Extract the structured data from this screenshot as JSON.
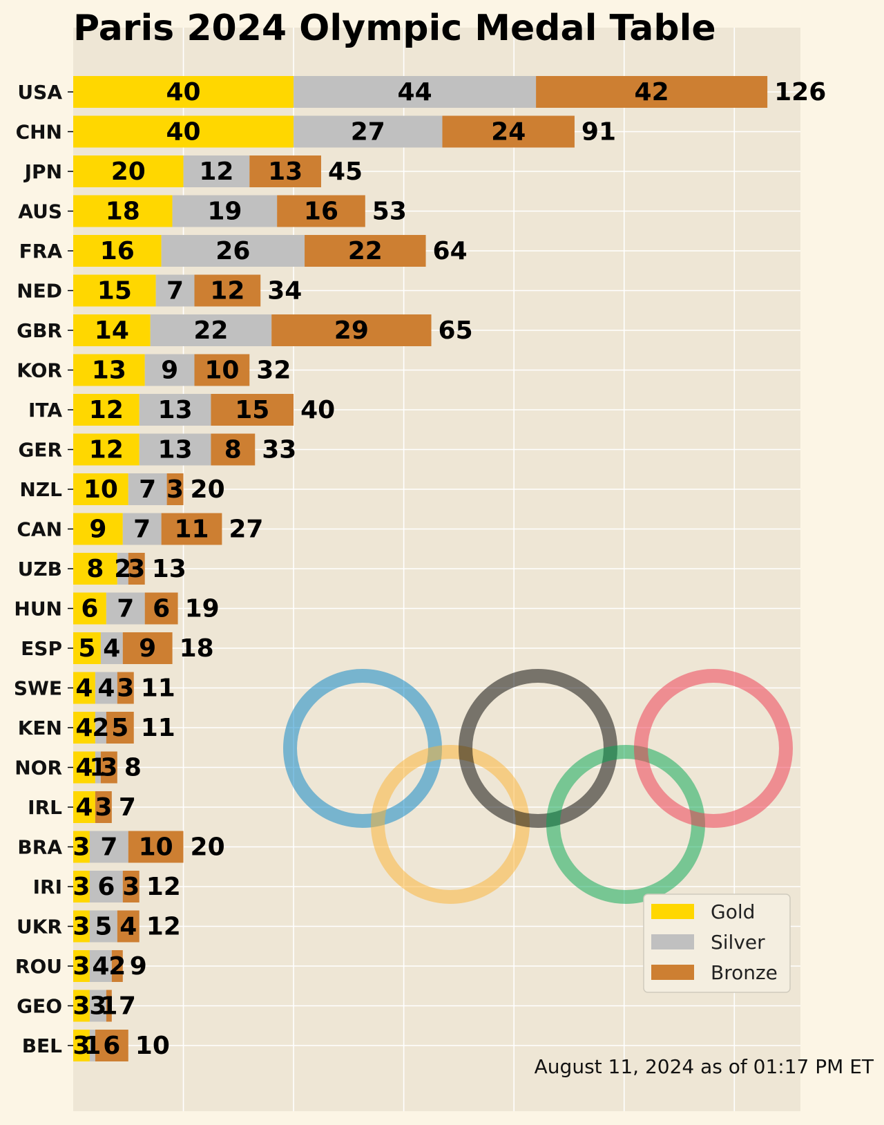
{
  "chart_data": {
    "type": "bar",
    "orientation": "horizontal",
    "stacked": true,
    "title": "Paris 2024 Olympic Medal Table",
    "categories": [
      "USA",
      "CHN",
      "JPN",
      "AUS",
      "FRA",
      "NED",
      "GBR",
      "KOR",
      "ITA",
      "GER",
      "NZL",
      "CAN",
      "UZB",
      "HUN",
      "ESP",
      "SWE",
      "KEN",
      "NOR",
      "IRL",
      "BRA",
      "IRI",
      "UKR",
      "ROU",
      "GEO",
      "BEL"
    ],
    "series": [
      {
        "name": "Gold",
        "color": "#ffd700",
        "values": [
          40,
          40,
          20,
          18,
          16,
          15,
          14,
          13,
          12,
          12,
          10,
          9,
          8,
          6,
          5,
          4,
          4,
          4,
          4,
          3,
          3,
          3,
          3,
          3,
          3
        ]
      },
      {
        "name": "Silver",
        "color": "#c0c0c0",
        "values": [
          44,
          27,
          12,
          19,
          26,
          7,
          22,
          9,
          13,
          13,
          7,
          7,
          2,
          7,
          4,
          4,
          2,
          1,
          0,
          7,
          6,
          5,
          4,
          3,
          1
        ]
      },
      {
        "name": "Bronze",
        "color": "#cd7f32",
        "values": [
          42,
          24,
          13,
          16,
          22,
          12,
          29,
          10,
          15,
          8,
          3,
          11,
          3,
          6,
          9,
          3,
          5,
          3,
          3,
          10,
          3,
          4,
          2,
          1,
          6
        ]
      }
    ],
    "totals": [
      126,
      91,
      45,
      53,
      64,
      34,
      65,
      32,
      40,
      33,
      20,
      27,
      13,
      19,
      18,
      11,
      11,
      8,
      7,
      20,
      12,
      12,
      9,
      7,
      10
    ],
    "xlim": [
      0,
      132
    ],
    "grid": true,
    "legend": {
      "placement": "lower-right",
      "entries": [
        "Gold",
        "Silver",
        "Bronze"
      ]
    },
    "annotation": "August 11, 2024 as of 01:17 PM ET",
    "logo": "olympic-rings",
    "ring_colors": [
      "#0081c8",
      "#fcb131",
      "#000000",
      "#00a651",
      "#ee334e"
    ]
  }
}
